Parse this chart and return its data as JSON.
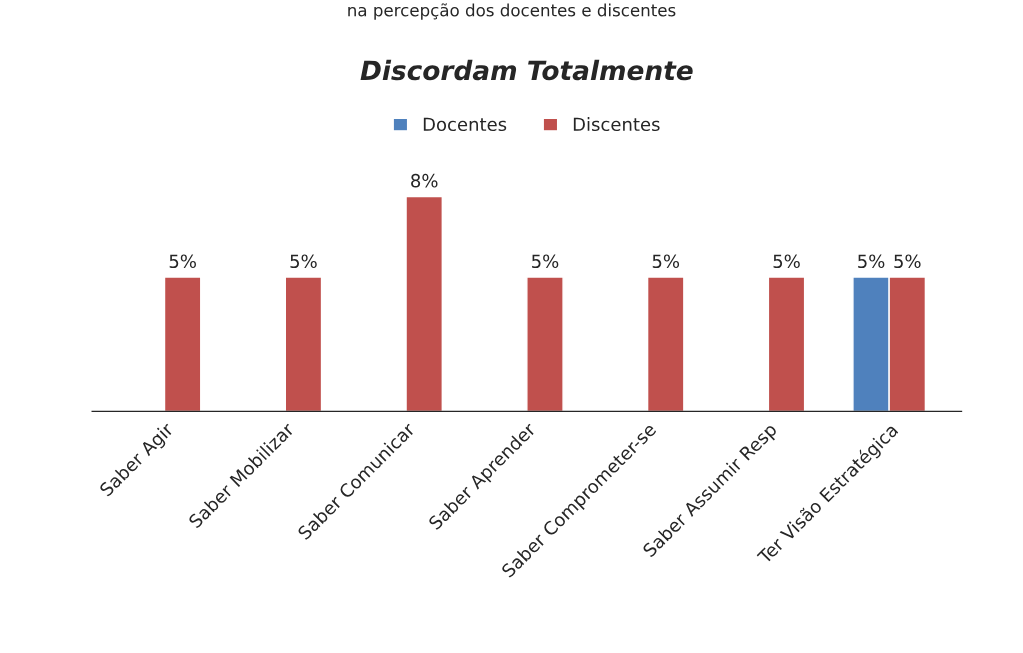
{
  "chart_data": {
    "type": "bar",
    "title": "Discordam Totalmente",
    "annotations": [
      "na percepção dos docentes e discentes"
    ],
    "categories": [
      "Saber Agir",
      "Saber Mobilizar",
      "Saber Comunicar",
      "Saber Aprender",
      "Saber Comprometer-se",
      "Saber Assumir Resp",
      "Ter Visão Estratégica"
    ],
    "series": [
      {
        "name": "Docentes",
        "color": "#4f81bd",
        "values": [
          null,
          null,
          null,
          null,
          null,
          null,
          5
        ],
        "value_labels": [
          null,
          null,
          null,
          null,
          null,
          null,
          "5%"
        ]
      },
      {
        "name": "Discentes",
        "color": "#c0504d",
        "values": [
          5,
          5,
          8,
          5,
          5,
          5,
          5
        ],
        "value_labels": [
          "5%",
          "5%",
          "8%",
          "5%",
          "5%",
          "5%",
          "5%"
        ]
      }
    ],
    "legend": "top",
    "grid": false,
    "tick_labels": "x"
  }
}
